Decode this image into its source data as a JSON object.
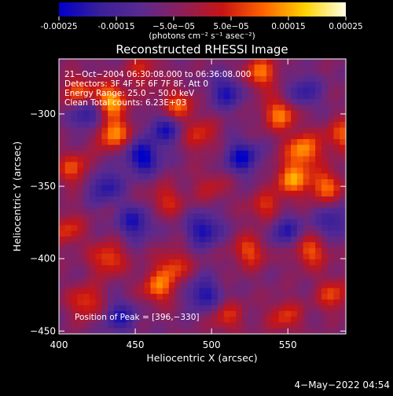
{
  "chart_data": {
    "type": "heatmap",
    "title": "Reconstructed RHESSI Image",
    "xlabel": "Heliocentric X (arcsec)",
    "ylabel": "Heliocentric Y (arcsec)",
    "xlim": [
      400,
      588
    ],
    "ylim": [
      -452,
      -262
    ],
    "x_ticks": [
      400,
      450,
      500,
      550
    ],
    "y_ticks": [
      -300,
      -350,
      -400,
      -450
    ],
    "colorbar": {
      "range": [
        -0.00025,
        0.00025
      ],
      "tick_values": [
        -0.00025,
        -0.00015,
        -5e-05,
        5e-05,
        0.00015,
        0.00025
      ],
      "tick_labels": [
        "-0.00025",
        "-0.00015",
        "−5.0e−05",
        "5.0e−05",
        "0.00015",
        "0.00025"
      ],
      "unit_label": "(photons cm⁻² s⁻¹ asec⁻²)",
      "colors": [
        "#0000c8",
        "#3a1f9a",
        "#5a2a90",
        "#8c1f5a",
        "#c81414",
        "#ff6400",
        "#ffd200",
        "#ffffe6"
      ]
    },
    "annotations": [
      "21−Oct−2004 06:30:08.000 to 06:36:08.000",
      "Detectors: 3F 4F 5F 6F 7F 8F, Att 0",
      "Energy Range: 25.0 − 50.0 keV",
      "Clean     Total counts: 6.23E+03"
    ],
    "peak_label": "Position of Peak = [396,−330]",
    "peak": [
      396,
      -330
    ],
    "grid": false,
    "grid_cells": [
      47,
      48
    ],
    "bright_sources": [
      {
        "x": 433,
        "y": -291,
        "value": 0.00023
      },
      {
        "x": 435,
        "y": -313,
        "value": 0.0002
      },
      {
        "x": 412,
        "y": -285,
        "value": 0.00014
      },
      {
        "x": 477,
        "y": -295,
        "value": 0.00016
      },
      {
        "x": 492,
        "y": -315,
        "value": 0.00012
      },
      {
        "x": 532,
        "y": -272,
        "value": 0.00017
      },
      {
        "x": 545,
        "y": -300,
        "value": 0.00018
      },
      {
        "x": 560,
        "y": -325,
        "value": 0.0002
      },
      {
        "x": 553,
        "y": -345,
        "value": 0.00019
      },
      {
        "x": 575,
        "y": -350,
        "value": 0.00016
      },
      {
        "x": 586,
        "y": -315,
        "value": 0.00015
      },
      {
        "x": 536,
        "y": -365,
        "value": 0.00012
      },
      {
        "x": 470,
        "y": -360,
        "value": 0.00011
      },
      {
        "x": 410,
        "y": -338,
        "value": 0.00014
      },
      {
        "x": 405,
        "y": -380,
        "value": 0.00012
      },
      {
        "x": 432,
        "y": -400,
        "value": 0.00015
      },
      {
        "x": 418,
        "y": -430,
        "value": 0.00014
      },
      {
        "x": 475,
        "y": -405,
        "value": 0.00013
      },
      {
        "x": 465,
        "y": -420,
        "value": 0.00016
      },
      {
        "x": 525,
        "y": -395,
        "value": 0.00014
      },
      {
        "x": 565,
        "y": -395,
        "value": 0.00015
      },
      {
        "x": 580,
        "y": -425,
        "value": 0.00013
      },
      {
        "x": 548,
        "y": -440,
        "value": 0.00012
      },
      {
        "x": 510,
        "y": -440,
        "value": 0.00011
      },
      {
        "x": 500,
        "y": -350,
        "value": 8e-05
      },
      {
        "x": 455,
        "y": -270,
        "value": 0.0001
      }
    ],
    "dark_sources": [
      {
        "x": 420,
        "y": -300,
        "value": -0.00018
      },
      {
        "x": 455,
        "y": -330,
        "value": -0.0002
      },
      {
        "x": 470,
        "y": -310,
        "value": -0.00016
      },
      {
        "x": 510,
        "y": -285,
        "value": -0.00015
      },
      {
        "x": 520,
        "y": -330,
        "value": -0.00018
      },
      {
        "x": 495,
        "y": -380,
        "value": -0.00017
      },
      {
        "x": 450,
        "y": -375,
        "value": -0.00016
      },
      {
        "x": 430,
        "y": -350,
        "value": -0.00015
      },
      {
        "x": 440,
        "y": -440,
        "value": -0.00014
      },
      {
        "x": 495,
        "y": -425,
        "value": -0.00016
      },
      {
        "x": 548,
        "y": -380,
        "value": -0.00014
      },
      {
        "x": 560,
        "y": -285,
        "value": -0.00013
      },
      {
        "x": 580,
        "y": -375,
        "value": -0.00013
      }
    ]
  },
  "footer_date": "4−May−2022 04:54"
}
